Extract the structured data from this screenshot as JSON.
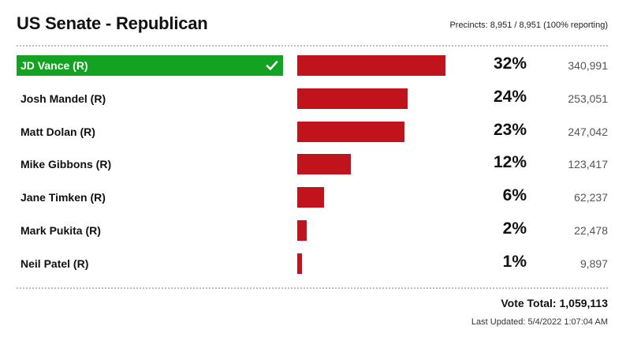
{
  "header": {
    "title": "US Senate - Republican",
    "precincts": "Precincts: 8,951 / 8,951 (100% reporting)"
  },
  "footer": {
    "vote_total": "Vote Total: 1,059,113",
    "last_updated": "Last Updated: 5/4/2022 1:07:04 AM"
  },
  "colors": {
    "bar": "#c0131c",
    "winner": "#13a221"
  },
  "chart_data": {
    "type": "bar",
    "orientation": "horizontal",
    "title": "US Senate - Republican",
    "categories": [
      "JD Vance (R)",
      "Josh Mandel (R)",
      "Matt Dolan (R)",
      "Mike Gibbons (R)",
      "Jane Timken (R)",
      "Mark Pukita (R)",
      "Neil Patel (R)"
    ],
    "values": [
      340991,
      253051,
      247042,
      123417,
      62237,
      22478,
      9897
    ],
    "percent_labels": [
      "32%",
      "24%",
      "23%",
      "12%",
      "6%",
      "2%",
      "1%"
    ],
    "vote_labels": [
      "340,991",
      "253,051",
      "247,042",
      "123,417",
      "62,237",
      "22,478",
      "9,897"
    ],
    "winner_index": 0,
    "grid": false,
    "legend": "none"
  }
}
